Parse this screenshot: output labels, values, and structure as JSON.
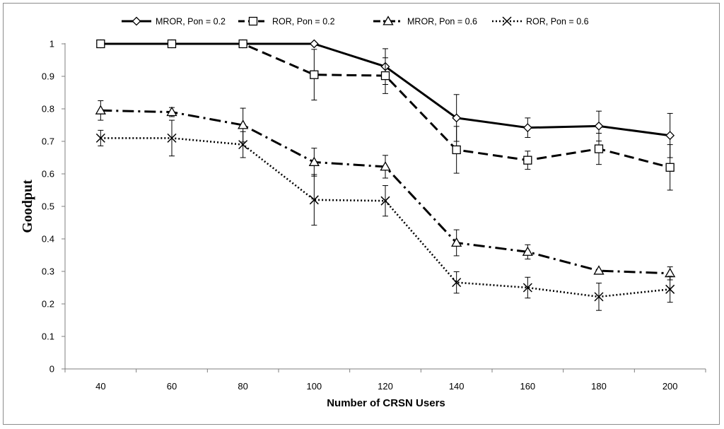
{
  "chart_data": {
    "type": "line",
    "title": "",
    "xlabel": "Number of CRSN Users",
    "ylabel": "Goodput",
    "x": [
      40,
      60,
      80,
      100,
      120,
      140,
      160,
      180,
      200
    ],
    "x_tick_labels": [
      "40",
      "60",
      "80",
      "100",
      "120",
      "140",
      "160",
      "180",
      "200"
    ],
    "ylim": [
      0,
      1
    ],
    "y_ticks": [
      0,
      0.1,
      0.2,
      0.3,
      0.4,
      0.5,
      0.6,
      0.7,
      0.8,
      0.9,
      1
    ],
    "y_tick_labels": [
      "0",
      "0.1",
      "0.2",
      "0.3",
      "0.4",
      "0.5",
      "0.6",
      "0.7",
      "0.8",
      "0.9",
      "1"
    ],
    "grid": false,
    "legend_position": "top",
    "series": [
      {
        "name": "MROR, Pon = 0.2",
        "marker": "diamond",
        "line_style": "solid",
        "color": "#000000",
        "values": [
          1.0,
          1.0,
          1.0,
          1.0,
          0.93,
          0.772,
          0.742,
          0.747,
          0.718
        ],
        "errors": [
          0,
          0,
          0,
          0,
          0.055,
          0.072,
          0.03,
          0.046,
          0.068
        ]
      },
      {
        "name": "ROR, Pon = 0.2",
        "marker": "square",
        "line_style": "dashed",
        "color": "#000000",
        "values": [
          1.0,
          1.0,
          1.0,
          0.905,
          0.902,
          0.674,
          0.642,
          0.677,
          0.62
        ],
        "errors": [
          0,
          0,
          0,
          0.078,
          0.055,
          0.072,
          0.028,
          0.048,
          0.07
        ]
      },
      {
        "name": "MROR, Pon = 0.6",
        "marker": "triangle",
        "line_style": "dashdot",
        "color": "#000000",
        "values": [
          0.795,
          0.79,
          0.75,
          0.636,
          0.622,
          0.388,
          0.36,
          0.302,
          0.294
        ],
        "errors": [
          0.03,
          0.014,
          0.052,
          0.043,
          0.035,
          0.04,
          0.022,
          0.0,
          0.02
        ]
      },
      {
        "name": "ROR, Pon = 0.6",
        "marker": "x",
        "line_style": "dotted",
        "color": "#000000",
        "values": [
          0.71,
          0.71,
          0.69,
          0.52,
          0.517,
          0.266,
          0.25,
          0.222,
          0.245
        ],
        "errors": [
          0.024,
          0.055,
          0.04,
          0.078,
          0.047,
          0.033,
          0.032,
          0.042,
          0.04
        ]
      }
    ]
  }
}
